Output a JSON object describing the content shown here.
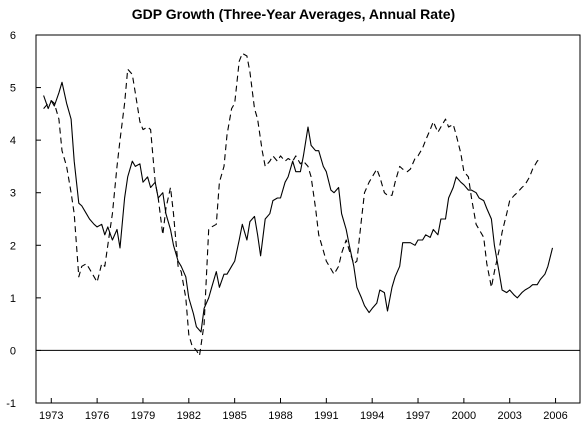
{
  "chart_data": {
    "type": "line",
    "title": "GDP Growth (Three-Year Averages, Annual Rate)",
    "xlabel": "",
    "ylabel": "",
    "xlim": [
      1972,
      2007.6
    ],
    "ylim": [
      -1,
      6
    ],
    "grid": false,
    "legend": "none",
    "x_ticks": [
      1973,
      1976,
      1979,
      1982,
      1985,
      1988,
      1991,
      1994,
      1997,
      2000,
      2003,
      2006
    ],
    "y_ticks": [
      -1,
      0,
      1,
      2,
      3,
      4,
      5,
      6
    ],
    "reference_line": 0,
    "series": [
      {
        "style": "solid",
        "color": "#000000",
        "points": [
          [
            1972.5,
            4.85
          ],
          [
            1972.8,
            4.6
          ],
          [
            1973.0,
            4.75
          ],
          [
            1973.2,
            4.65
          ],
          [
            1973.5,
            4.9
          ],
          [
            1973.7,
            5.1
          ],
          [
            1974.0,
            4.7
          ],
          [
            1974.3,
            4.4
          ],
          [
            1974.5,
            3.6
          ],
          [
            1974.8,
            2.8
          ],
          [
            1975.0,
            2.75
          ],
          [
            1975.3,
            2.6
          ],
          [
            1975.5,
            2.5
          ],
          [
            1975.8,
            2.4
          ],
          [
            1976.0,
            2.35
          ],
          [
            1976.3,
            2.4
          ],
          [
            1976.5,
            2.2
          ],
          [
            1976.7,
            2.35
          ],
          [
            1977.0,
            2.1
          ],
          [
            1977.3,
            2.3
          ],
          [
            1977.5,
            1.95
          ],
          [
            1977.8,
            2.9
          ],
          [
            1978.0,
            3.3
          ],
          [
            1978.3,
            3.6
          ],
          [
            1978.5,
            3.5
          ],
          [
            1978.8,
            3.55
          ],
          [
            1979.0,
            3.2
          ],
          [
            1979.3,
            3.3
          ],
          [
            1979.5,
            3.1
          ],
          [
            1979.8,
            3.2
          ],
          [
            1980.0,
            2.9
          ],
          [
            1980.3,
            3.0
          ],
          [
            1980.5,
            2.6
          ],
          [
            1980.8,
            2.3
          ],
          [
            1981.0,
            2.0
          ],
          [
            1981.3,
            1.7
          ],
          [
            1981.5,
            1.6
          ],
          [
            1981.8,
            1.4
          ],
          [
            1982.0,
            1.0
          ],
          [
            1982.3,
            0.7
          ],
          [
            1982.5,
            0.45
          ],
          [
            1982.8,
            0.35
          ],
          [
            1983.0,
            0.8
          ],
          [
            1983.3,
            1.0
          ],
          [
            1983.5,
            1.2
          ],
          [
            1983.8,
            1.5
          ],
          [
            1984.0,
            1.2
          ],
          [
            1984.3,
            1.45
          ],
          [
            1984.5,
            1.45
          ],
          [
            1984.8,
            1.6
          ],
          [
            1985.0,
            1.7
          ],
          [
            1985.3,
            2.1
          ],
          [
            1985.5,
            2.4
          ],
          [
            1985.8,
            2.1
          ],
          [
            1986.0,
            2.45
          ],
          [
            1986.3,
            2.55
          ],
          [
            1986.5,
            2.2
          ],
          [
            1986.7,
            1.8
          ],
          [
            1987.0,
            2.5
          ],
          [
            1987.3,
            2.6
          ],
          [
            1987.5,
            2.85
          ],
          [
            1987.8,
            2.9
          ],
          [
            1988.0,
            2.9
          ],
          [
            1988.3,
            3.2
          ],
          [
            1988.5,
            3.3
          ],
          [
            1988.8,
            3.6
          ],
          [
            1989.0,
            3.4
          ],
          [
            1989.3,
            3.4
          ],
          [
            1989.5,
            3.7
          ],
          [
            1989.8,
            4.25
          ],
          [
            1990.0,
            3.9
          ],
          [
            1990.3,
            3.8
          ],
          [
            1990.5,
            3.8
          ],
          [
            1990.8,
            3.5
          ],
          [
            1991.0,
            3.4
          ],
          [
            1991.3,
            3.05
          ],
          [
            1991.5,
            3.0
          ],
          [
            1991.8,
            3.1
          ],
          [
            1992.0,
            2.6
          ],
          [
            1992.3,
            2.3
          ],
          [
            1992.5,
            2.0
          ],
          [
            1992.8,
            1.6
          ],
          [
            1993.0,
            1.2
          ],
          [
            1993.3,
            1.0
          ],
          [
            1993.5,
            0.85
          ],
          [
            1993.8,
            0.72
          ],
          [
            1994.0,
            0.8
          ],
          [
            1994.3,
            0.9
          ],
          [
            1994.5,
            1.15
          ],
          [
            1994.8,
            1.1
          ],
          [
            1995.0,
            0.75
          ],
          [
            1995.3,
            1.2
          ],
          [
            1995.5,
            1.4
          ],
          [
            1995.8,
            1.6
          ],
          [
            1996.0,
            2.05
          ],
          [
            1996.3,
            2.05
          ],
          [
            1996.5,
            2.05
          ],
          [
            1996.8,
            2.0
          ],
          [
            1997.0,
            2.1
          ],
          [
            1997.3,
            2.1
          ],
          [
            1997.5,
            2.2
          ],
          [
            1997.8,
            2.15
          ],
          [
            1998.0,
            2.3
          ],
          [
            1998.3,
            2.2
          ],
          [
            1998.5,
            2.5
          ],
          [
            1998.8,
            2.5
          ],
          [
            1999.0,
            2.9
          ],
          [
            1999.3,
            3.1
          ],
          [
            1999.5,
            3.3
          ],
          [
            1999.8,
            3.2
          ],
          [
            2000.0,
            3.15
          ],
          [
            2000.3,
            3.05
          ],
          [
            2000.5,
            3.05
          ],
          [
            2000.8,
            3.0
          ],
          [
            2001.0,
            2.9
          ],
          [
            2001.3,
            2.85
          ],
          [
            2001.5,
            2.7
          ],
          [
            2001.8,
            2.5
          ],
          [
            2002.0,
            2.0
          ],
          [
            2002.3,
            1.5
          ],
          [
            2002.5,
            1.15
          ],
          [
            2002.8,
            1.1
          ],
          [
            2003.0,
            1.15
          ],
          [
            2003.3,
            1.05
          ],
          [
            2003.5,
            1.0
          ],
          [
            2003.8,
            1.1
          ],
          [
            2004.0,
            1.15
          ],
          [
            2004.3,
            1.2
          ],
          [
            2004.5,
            1.25
          ],
          [
            2004.8,
            1.25
          ],
          [
            2005.0,
            1.35
          ],
          [
            2005.3,
            1.45
          ],
          [
            2005.5,
            1.6
          ],
          [
            2005.8,
            1.95
          ]
        ]
      },
      {
        "style": "dashed",
        "color": "#000000",
        "points": [
          [
            1972.5,
            4.6
          ],
          [
            1972.8,
            4.7
          ],
          [
            1973.0,
            4.75
          ],
          [
            1973.2,
            4.7
          ],
          [
            1973.5,
            4.4
          ],
          [
            1973.7,
            3.8
          ],
          [
            1974.0,
            3.5
          ],
          [
            1974.3,
            3.0
          ],
          [
            1974.5,
            2.6
          ],
          [
            1974.8,
            1.4
          ],
          [
            1975.0,
            1.6
          ],
          [
            1975.3,
            1.65
          ],
          [
            1975.5,
            1.55
          ],
          [
            1975.8,
            1.4
          ],
          [
            1976.0,
            1.3
          ],
          [
            1976.3,
            1.65
          ],
          [
            1976.5,
            1.6
          ],
          [
            1976.8,
            2.2
          ],
          [
            1977.0,
            2.6
          ],
          [
            1977.3,
            3.5
          ],
          [
            1977.5,
            4.0
          ],
          [
            1977.8,
            4.7
          ],
          [
            1978.0,
            5.35
          ],
          [
            1978.3,
            5.25
          ],
          [
            1978.5,
            4.9
          ],
          [
            1978.8,
            4.35
          ],
          [
            1979.0,
            4.2
          ],
          [
            1979.3,
            4.25
          ],
          [
            1979.5,
            4.2
          ],
          [
            1979.8,
            3.2
          ],
          [
            1980.0,
            2.9
          ],
          [
            1980.3,
            2.2
          ],
          [
            1980.5,
            2.7
          ],
          [
            1980.8,
            3.1
          ],
          [
            1981.0,
            2.6
          ],
          [
            1981.3,
            1.6
          ],
          [
            1981.5,
            1.5
          ],
          [
            1981.8,
            1.0
          ],
          [
            1982.0,
            0.3
          ],
          [
            1982.2,
            0.1
          ],
          [
            1982.5,
            0.0
          ],
          [
            1982.7,
            -0.1
          ],
          [
            1983.0,
            0.5
          ],
          [
            1983.3,
            2.3
          ],
          [
            1983.5,
            2.35
          ],
          [
            1983.8,
            2.4
          ],
          [
            1984.0,
            3.2
          ],
          [
            1984.3,
            3.5
          ],
          [
            1984.5,
            4.1
          ],
          [
            1984.8,
            4.6
          ],
          [
            1985.0,
            4.7
          ],
          [
            1985.3,
            5.5
          ],
          [
            1985.5,
            5.65
          ],
          [
            1985.8,
            5.6
          ],
          [
            1986.0,
            5.3
          ],
          [
            1986.3,
            4.6
          ],
          [
            1986.5,
            4.4
          ],
          [
            1986.8,
            3.8
          ],
          [
            1987.0,
            3.5
          ],
          [
            1987.3,
            3.6
          ],
          [
            1987.5,
            3.7
          ],
          [
            1987.8,
            3.6
          ],
          [
            1988.0,
            3.7
          ],
          [
            1988.3,
            3.6
          ],
          [
            1988.5,
            3.65
          ],
          [
            1988.8,
            3.6
          ],
          [
            1989.0,
            3.7
          ],
          [
            1989.3,
            3.55
          ],
          [
            1989.5,
            3.6
          ],
          [
            1989.8,
            3.5
          ],
          [
            1990.0,
            3.3
          ],
          [
            1990.3,
            2.7
          ],
          [
            1990.5,
            2.2
          ],
          [
            1990.8,
            1.9
          ],
          [
            1991.0,
            1.7
          ],
          [
            1991.3,
            1.55
          ],
          [
            1991.5,
            1.45
          ],
          [
            1991.8,
            1.6
          ],
          [
            1992.0,
            1.85
          ],
          [
            1992.3,
            2.1
          ],
          [
            1992.5,
            1.9
          ],
          [
            1992.8,
            1.65
          ],
          [
            1993.0,
            1.7
          ],
          [
            1993.3,
            2.5
          ],
          [
            1993.5,
            3.0
          ],
          [
            1993.8,
            3.2
          ],
          [
            1994.0,
            3.3
          ],
          [
            1994.3,
            3.45
          ],
          [
            1994.5,
            3.3
          ],
          [
            1994.8,
            3.0
          ],
          [
            1995.0,
            2.95
          ],
          [
            1995.3,
            2.95
          ],
          [
            1995.5,
            3.2
          ],
          [
            1995.8,
            3.5
          ],
          [
            1996.0,
            3.45
          ],
          [
            1996.3,
            3.4
          ],
          [
            1996.5,
            3.45
          ],
          [
            1996.8,
            3.65
          ],
          [
            1997.0,
            3.7
          ],
          [
            1997.3,
            3.85
          ],
          [
            1997.5,
            4.0
          ],
          [
            1997.8,
            4.2
          ],
          [
            1998.0,
            4.35
          ],
          [
            1998.3,
            4.15
          ],
          [
            1998.5,
            4.25
          ],
          [
            1998.8,
            4.4
          ],
          [
            1999.0,
            4.25
          ],
          [
            1999.3,
            4.3
          ],
          [
            1999.5,
            4.1
          ],
          [
            1999.8,
            3.75
          ],
          [
            2000.0,
            3.4
          ],
          [
            2000.3,
            3.3
          ],
          [
            2000.5,
            2.9
          ],
          [
            2000.8,
            2.4
          ],
          [
            2001.0,
            2.3
          ],
          [
            2001.3,
            2.15
          ],
          [
            2001.5,
            1.65
          ],
          [
            2001.8,
            1.2
          ],
          [
            2002.0,
            1.5
          ],
          [
            2002.3,
            1.9
          ],
          [
            2002.5,
            2.25
          ],
          [
            2002.8,
            2.6
          ],
          [
            2003.0,
            2.85
          ],
          [
            2003.3,
            2.95
          ],
          [
            2003.5,
            3.0
          ],
          [
            2003.8,
            3.1
          ],
          [
            2004.0,
            3.15
          ],
          [
            2004.3,
            3.3
          ],
          [
            2004.5,
            3.45
          ],
          [
            2004.8,
            3.6
          ],
          [
            2005.0,
            3.65
          ]
        ]
      }
    ]
  }
}
